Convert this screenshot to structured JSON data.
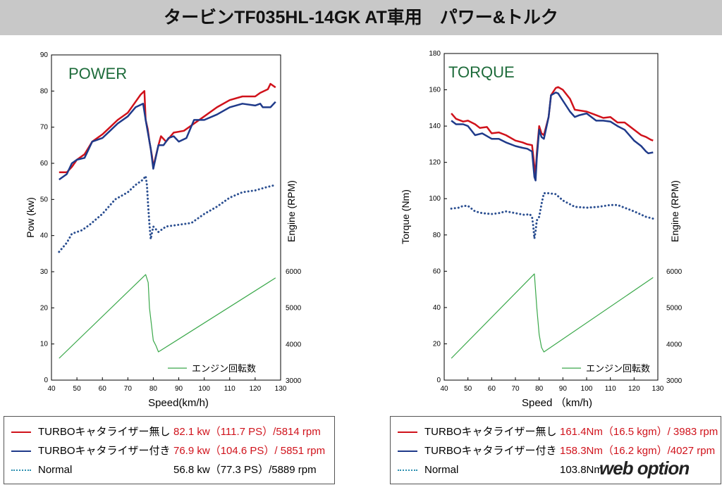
{
  "title": "タービンTF035HL-14GK AT車用　パワー&トルク",
  "colors": {
    "red": "#d0121b",
    "blue": "#1f3a8a",
    "normal": "#2b4f91",
    "rpm": "#3aa84a"
  },
  "chart_data": [
    {
      "type": "line",
      "title": "POWER",
      "xlabel": "Speed(km/h)",
      "ylabel": "Pow  (kw)",
      "y2label": "Engine  (RPM)",
      "xlim": [
        40,
        130
      ],
      "ylim": [
        0,
        90
      ],
      "xticks": [
        40,
        50,
        60,
        70,
        80,
        90,
        100,
        110,
        120,
        130
      ],
      "yticks": [
        0,
        10,
        20,
        30,
        40,
        50,
        60,
        70,
        80,
        90
      ],
      "y2ticks": [
        3000,
        4000,
        5000,
        6000
      ],
      "y2lim": [
        3000,
        11940
      ],
      "rpm_legend": "エンジン回転数",
      "series": [
        {
          "name": "TURBOキャタライザー無し",
          "style": "red",
          "x": [
            43,
            46,
            48,
            50,
            53,
            56,
            60,
            63,
            66,
            70,
            73,
            75,
            76.5,
            77,
            77.8,
            78.5,
            79.5,
            80,
            82,
            83,
            85,
            88,
            92,
            95,
            100,
            105,
            110,
            115,
            120,
            122,
            125,
            126,
            128
          ],
          "y": [
            57.5,
            57.5,
            59,
            61,
            62.5,
            66,
            68,
            70,
            72,
            74,
            77,
            79,
            80,
            72,
            69.5,
            66,
            62,
            59,
            65,
            67.5,
            66,
            68.5,
            69,
            70.5,
            73,
            75.5,
            77.5,
            78.5,
            78.5,
            79.5,
            80.5,
            82,
            81
          ]
        },
        {
          "name": "TURBOキャタライザー付き",
          "style": "blue",
          "x": [
            43,
            46,
            48,
            50,
            53,
            56,
            60,
            63,
            66,
            70,
            73,
            76,
            77,
            78,
            79,
            80,
            82,
            84,
            86,
            88,
            90,
            93,
            96,
            100,
            105,
            110,
            115,
            120,
            122,
            123,
            126,
            128
          ],
          "y": [
            55.5,
            57,
            60,
            61,
            61.5,
            66,
            67,
            69,
            71,
            73,
            75.5,
            76.5,
            72,
            68,
            64,
            58.5,
            65,
            65,
            67,
            67.5,
            66,
            67,
            72,
            72,
            73.5,
            75.5,
            76.5,
            76,
            76.5,
            75.5,
            75.5,
            77
          ]
        },
        {
          "name": "Normal",
          "style": "normal",
          "x": [
            43,
            46,
            48,
            52,
            55,
            60,
            65,
            70,
            73,
            76,
            77,
            77.5,
            78,
            78.5,
            79,
            80,
            82,
            85,
            90,
            95,
            100,
            105,
            110,
            115,
            120,
            125,
            128
          ],
          "y": [
            35.5,
            38,
            40.5,
            41.5,
            43,
            46,
            50,
            52,
            54,
            55.5,
            56.5,
            54,
            48,
            43,
            39,
            42.5,
            41,
            42.5,
            43,
            43.5,
            46,
            48,
            50.5,
            52,
            52.5,
            53.5,
            54
          ]
        },
        {
          "name": "エンジン回転数",
          "style": "rpm",
          "axis": "y2",
          "x": [
            43,
            77,
            78,
            78.5,
            80,
            81,
            82,
            128
          ],
          "y": [
            3600,
            5900,
            5680,
            4985,
            4090,
            3950,
            3775,
            5810
          ]
        }
      ],
      "legend": [
        {
          "label": "TURBOキャタライザー無し",
          "value": "82.1 kw（111.7 PS）/5814 rpm"
        },
        {
          "label": "TURBOキャタライザー付き",
          "value": "76.9 kw（104.6 PS）/ 5851 rpm"
        },
        {
          "label": "Normal",
          "value": "56.8 kw（77.3 PS）/5889 rpm"
        }
      ]
    },
    {
      "type": "line",
      "title": "TORQUE",
      "xlabel": "Speed （km/h)",
      "ylabel": "Torque  (Nm)",
      "y2label": "Engine  (RPM)",
      "xlim": [
        40,
        130
      ],
      "ylim": [
        0,
        180
      ],
      "xticks": [
        40,
        50,
        60,
        70,
        80,
        90,
        100,
        110,
        120,
        130
      ],
      "yticks": [
        0,
        20,
        40,
        60,
        80,
        100,
        120,
        140,
        160,
        180
      ],
      "y2ticks": [
        3000,
        4000,
        5000,
        6000
      ],
      "y2lim": [
        3000,
        11980
      ],
      "rpm_legend": "エンジン回転数",
      "series": [
        {
          "name": "TURBOキャタライザー無し",
          "style": "red",
          "x": [
            43,
            45,
            48,
            50,
            53,
            55,
            58,
            60,
            63,
            66,
            70,
            73,
            75,
            77,
            78,
            78.5,
            79,
            80,
            81,
            82,
            84,
            85,
            87,
            88,
            90,
            93,
            95,
            100,
            104,
            107,
            110,
            113,
            116,
            120,
            123,
            125,
            127,
            128
          ],
          "y": [
            147,
            144,
            142.5,
            143,
            141,
            139,
            139.5,
            136,
            136.5,
            135,
            132,
            131,
            130,
            129.5,
            118,
            113,
            125,
            140,
            136,
            135,
            145,
            157,
            161,
            161.5,
            160,
            155,
            149,
            148,
            146,
            144.5,
            145,
            142,
            142,
            138,
            135,
            134,
            132.5,
            132
          ]
        },
        {
          "name": "TURBOキャタライザー付き",
          "style": "blue",
          "x": [
            43,
            45,
            48,
            50,
            53,
            56,
            60,
            63,
            66,
            70,
            73,
            75,
            77,
            78,
            78.5,
            79,
            80,
            81,
            82,
            84,
            85,
            87,
            88,
            90,
            93,
            95,
            97,
            100,
            104,
            107,
            110,
            113,
            116,
            120,
            123,
            125,
            126,
            128
          ],
          "y": [
            143,
            141,
            141,
            140,
            135,
            136,
            133,
            133,
            131,
            129,
            128,
            127.5,
            126,
            112,
            110,
            122,
            138,
            134,
            133,
            145,
            157,
            158.5,
            158,
            154,
            148,
            145,
            146,
            147,
            143,
            143,
            142.5,
            140,
            138,
            132,
            129,
            126,
            125,
            125.5
          ]
        },
        {
          "name": "Normal",
          "style": "normal",
          "x": [
            43,
            46,
            48,
            50,
            53,
            56,
            60,
            63,
            66,
            70,
            74,
            76,
            77,
            77.5,
            78,
            78.5,
            79,
            80,
            81,
            82,
            84,
            87,
            90,
            95,
            100,
            105,
            110,
            113,
            116,
            120,
            125,
            128
          ],
          "y": [
            94.5,
            95,
            96,
            96,
            93,
            92,
            91.5,
            92,
            93,
            92,
            91,
            91.5,
            90,
            85,
            78,
            82,
            88,
            90,
            97,
            103,
            103,
            102.5,
            99,
            95.5,
            95,
            95.5,
            96.5,
            96.5,
            95,
            93,
            90,
            89
          ]
        },
        {
          "name": "エンジン回転数",
          "style": "rpm",
          "axis": "y2",
          "x": [
            43,
            78,
            79,
            80,
            81,
            82,
            128
          ],
          "y": [
            3600,
            5920,
            5000,
            4250,
            3900,
            3775,
            5820
          ]
        }
      ],
      "legend": [
        {
          "label": "TURBOキャタライザー無し",
          "value": "161.4Nm（16.5 kgm）/ 3983 rpm"
        },
        {
          "label": "TURBOキャタライザー付き",
          "value": "158.3Nm（16.2 kgm）/4027 rpm"
        },
        {
          "label": "Normal",
          "value": "103.8Nm"
        }
      ]
    }
  ],
  "watermark": "web option"
}
